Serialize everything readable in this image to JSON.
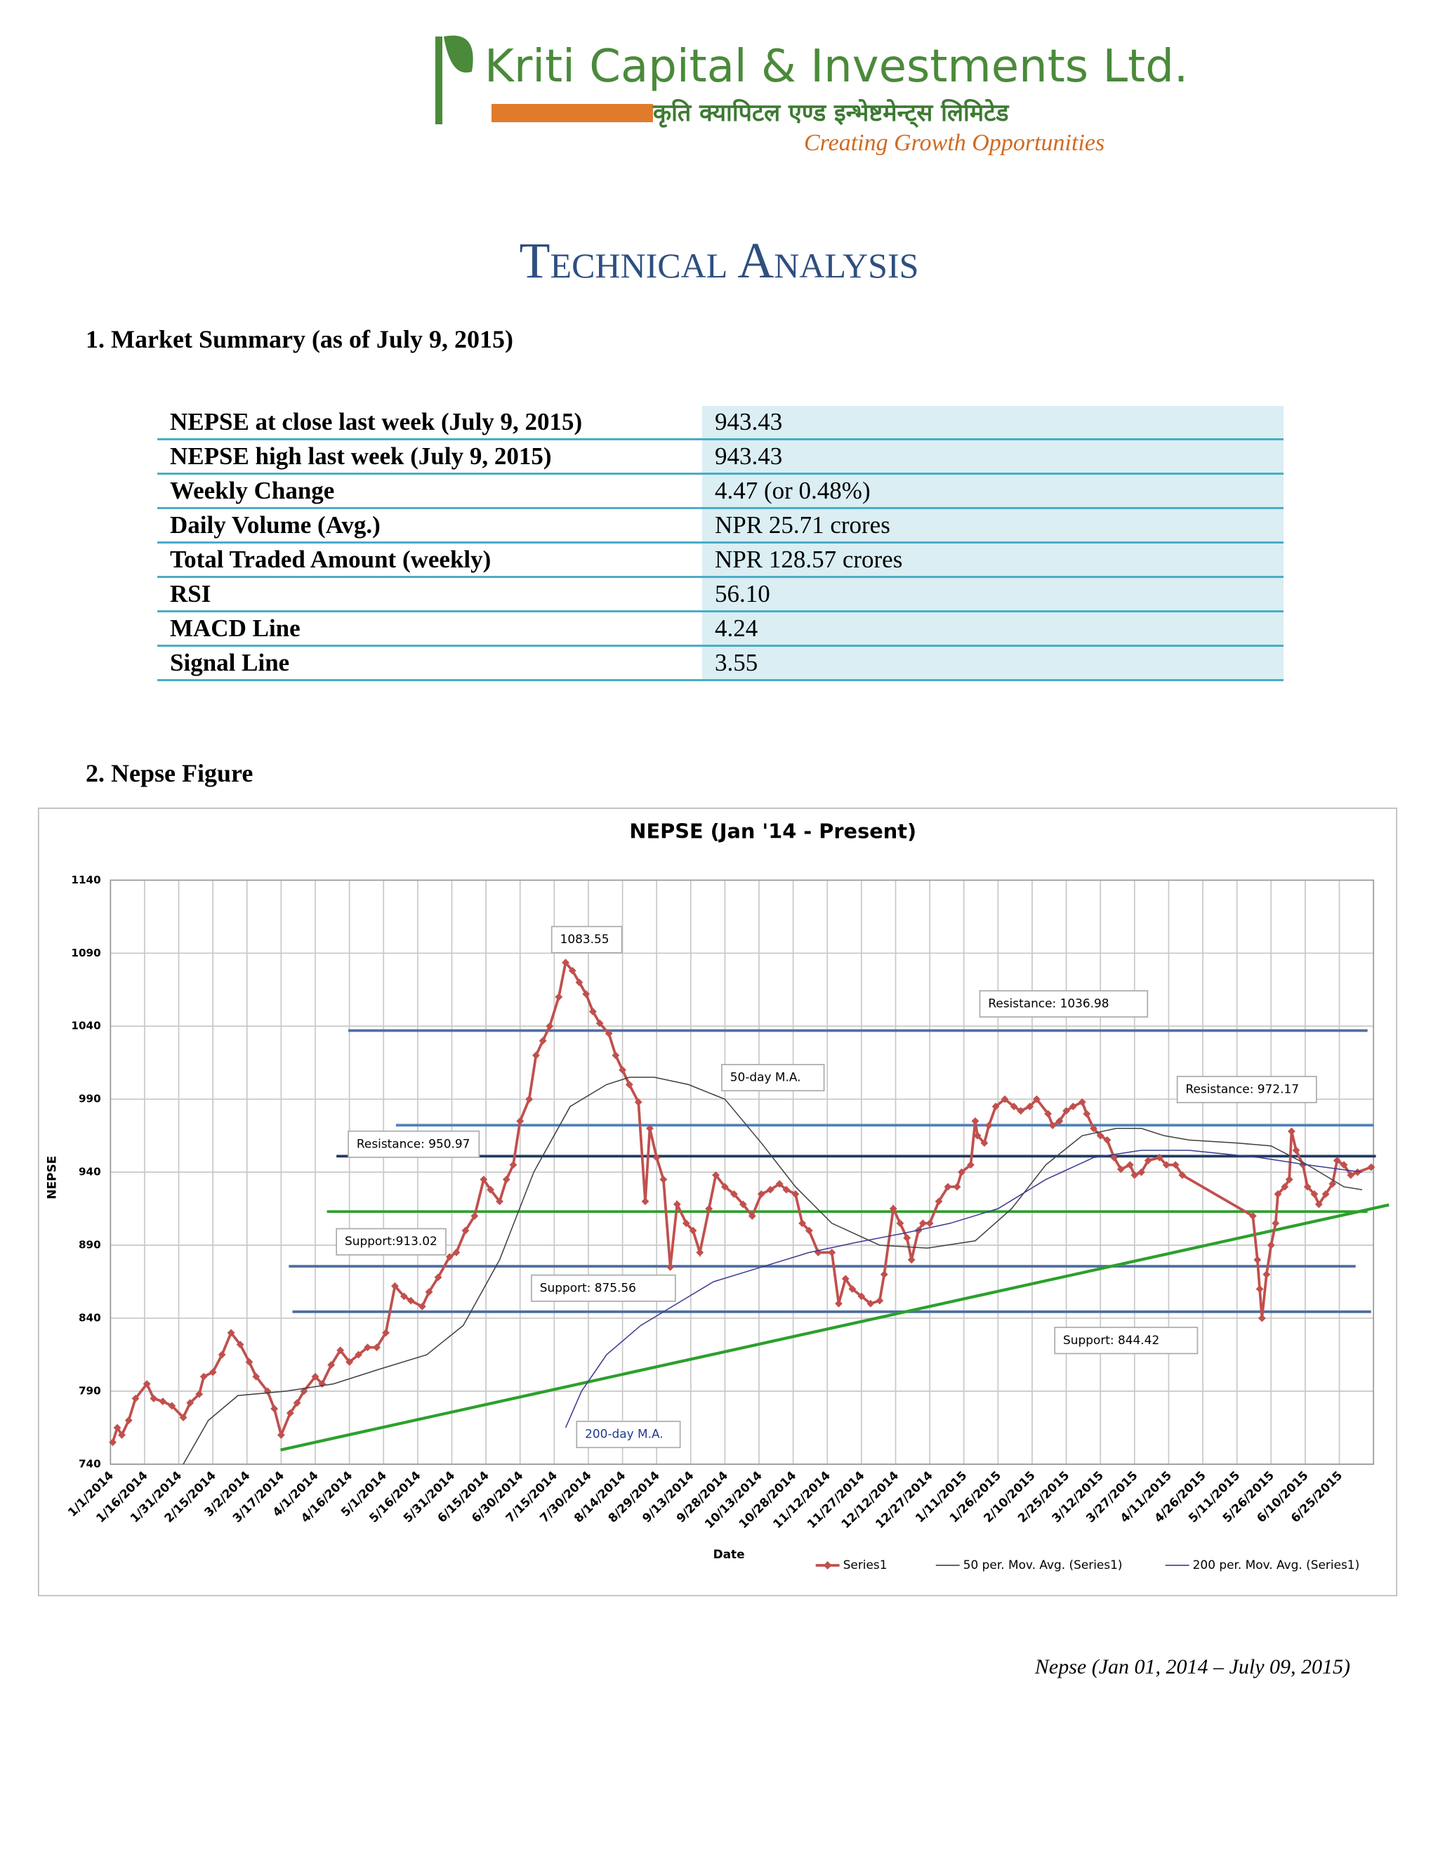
{
  "header": {
    "company": "Kriti Capital & Investments Ltd.",
    "company_local": "कृति क्यापिटल एण्ड इन्भेष्टमेन्ट्स लिमिटेड",
    "tagline": "Creating Growth Opportunities"
  },
  "title": "Technical Analysis",
  "sections": [
    "1.   Market Summary (as of July 9, 2015)",
    "2.   Nepse Figure"
  ],
  "table": {
    "rows": [
      [
        "NEPSE at close last week (July 9, 2015)",
        "943.43"
      ],
      [
        "NEPSE high last week (July 9, 2015)",
        "943.43"
      ],
      [
        "Weekly Change",
        "4.47 (or 0.48%)"
      ],
      [
        "Daily Volume (Avg.)",
        "NPR 25.71 crores"
      ],
      [
        "Total Traded Amount (weekly)",
        "NPR 128.57 crores"
      ],
      [
        "RSI",
        "56.10"
      ],
      [
        "MACD Line",
        "4.24"
      ],
      [
        "Signal Line",
        "3.55"
      ]
    ]
  },
  "chart_data": {
    "type": "line",
    "title": "NEPSE (Jan '14 - Present)",
    "x_label": "Date",
    "y_label": "NEPSE",
    "xlim": [
      "1/1/2014",
      "7/10/2015"
    ],
    "xticks": [
      "1/1/2014",
      "1/16/2014",
      "1/31/2014",
      "2/15/2014",
      "3/2/2014",
      "3/17/2014",
      "4/1/2014",
      "4/16/2014",
      "5/1/2014",
      "5/16/2014",
      "5/31/2014",
      "6/15/2014",
      "6/30/2014",
      "7/15/2014",
      "7/30/2014",
      "8/14/2014",
      "8/29/2014",
      "9/13/2014",
      "9/28/2014",
      "10/13/2014",
      "10/28/2014",
      "11/12/2014",
      "11/27/2014",
      "12/12/2014",
      "12/27/2014",
      "1/11/2015",
      "1/26/2015",
      "2/10/2015",
      "2/25/2015",
      "3/12/2015",
      "3/27/2015",
      "4/11/2015",
      "4/26/2015",
      "5/11/2015",
      "5/26/2015",
      "6/10/2015",
      "6/25/2015"
    ],
    "ylim": [
      740,
      1140
    ],
    "yticks": [
      740,
      790,
      840,
      890,
      940,
      990,
      1040,
      1090,
      1140
    ],
    "grid": true,
    "legend": "bottom",
    "series": [
      {
        "name": "Series1",
        "color": "#c0504d",
        "marker": "diamond",
        "x": [
          "1/2/2014",
          "1/4/2014",
          "1/6/2014",
          "1/9/2014",
          "1/12/2014",
          "1/17/2014",
          "1/20/2014",
          "1/24/2014",
          "1/28/2014",
          "2/2/2014",
          "2/5/2014",
          "2/9/2014",
          "2/11/2014",
          "2/15/2014",
          "2/19/2014",
          "2/23/2014",
          "2/27/2014",
          "3/3/2014",
          "3/6/2014",
          "3/11/2014",
          "3/14/2014",
          "3/17/2014",
          "3/21/2014",
          "3/24/2014",
          "3/27/2014",
          "4/1/2014",
          "4/4/2014",
          "4/8/2014",
          "4/12/2014",
          "4/16/2014",
          "4/20/2014",
          "4/24/2014",
          "4/28/2014",
          "5/2/2014",
          "5/6/2014",
          "5/10/2014",
          "5/13/2014",
          "5/18/2014",
          "5/21/2014",
          "5/25/2014",
          "5/30/2014",
          "6/2/2014",
          "6/6/2014",
          "6/10/2014",
          "6/14/2014",
          "6/17/2014",
          "6/21/2014",
          "6/24/2014",
          "6/27/2014",
          "6/30/2014",
          "7/4/2014",
          "7/7/2014",
          "7/10/2014",
          "7/13/2014",
          "7/17/2014",
          "7/20/2014",
          "7/23/2014",
          "7/26/2014",
          "7/29/2014",
          "8/1/2014",
          "8/4/2014",
          "8/8/2014",
          "8/11/2014",
          "8/14/2014",
          "8/17/2014",
          "8/21/2014",
          "8/24/2014",
          "8/26/2014",
          "8/29/2014",
          "9/1/2014",
          "9/4/2014",
          "9/7/2014",
          "9/11/2014",
          "9/14/2014",
          "9/17/2014",
          "9/21/2014",
          "9/24/2014",
          "9/28/2014",
          "10/2/2014",
          "10/6/2014",
          "10/10/2014",
          "10/14/2014",
          "10/18/2014",
          "10/22/2014",
          "10/25/2014",
          "10/29/2014",
          "11/1/2014",
          "11/4/2014",
          "11/8/2014",
          "11/14/2014",
          "11/17/2014",
          "11/20/2014",
          "11/23/2014",
          "11/27/2014",
          "12/1/2014",
          "12/5/2014",
          "12/7/2014",
          "12/11/2014",
          "12/14/2014",
          "12/17/2014",
          "12/19/2014",
          "12/22/2014",
          "12/24/2014",
          "12/27/2014",
          "12/31/2014",
          "1/4/2015",
          "1/8/2015",
          "1/10/2015",
          "1/14/2015",
          "1/16/2015",
          "1/17/2015",
          "1/20/2015",
          "1/22/2015",
          "1/25/2015",
          "1/29/2015",
          "2/2/2015",
          "2/5/2015",
          "2/9/2015",
          "2/12/2015",
          "2/17/2015",
          "2/19/2015",
          "2/22/2015",
          "2/25/2015",
          "2/28/2015",
          "3/4/2015",
          "3/6/2015",
          "3/9/2015",
          "3/12/2015",
          "3/15/2015",
          "3/18/2015",
          "3/21/2015",
          "3/25/2015",
          "3/27/2015",
          "3/30/2015",
          "4/2/2015",
          "4/7/2015",
          "4/10/2015",
          "4/14/2015",
          "4/17/2015",
          "5/18/2015",
          "5/20/2015",
          "5/21/2015",
          "5/22/2015",
          "5/24/2015",
          "5/26/2015",
          "5/28/2015",
          "5/29/2015",
          "6/1/2015",
          "6/3/2015",
          "6/4/2015",
          "6/6/2015",
          "6/9/2015",
          "6/11/2015",
          "6/14/2015",
          "6/16/2015",
          "6/19/2015",
          "6/22/2015",
          "6/24/2015",
          "6/27/2015",
          "6/30/2015",
          "7/3/2015",
          "7/9/2015"
        ],
        "values": [
          755,
          765,
          760,
          770,
          785,
          795,
          785,
          783,
          780,
          772,
          782,
          788,
          800,
          803,
          815,
          830,
          822,
          810,
          800,
          790,
          778,
          760,
          775,
          782,
          790,
          800,
          795,
          808,
          818,
          810,
          815,
          820,
          820,
          830,
          862,
          855,
          852,
          848,
          858,
          868,
          882,
          885,
          900,
          910,
          935,
          928,
          920,
          935,
          945,
          975,
          990,
          1020,
          1030,
          1040,
          1060,
          1083.55,
          1078,
          1070,
          1062,
          1050,
          1042,
          1035,
          1020,
          1010,
          1000,
          988,
          920,
          970,
          950,
          935,
          875,
          918,
          905,
          900,
          885,
          915,
          938,
          930,
          925,
          918,
          910,
          925,
          928,
          932,
          928,
          925,
          905,
          900,
          885,
          885,
          850,
          867,
          860,
          855,
          850,
          852,
          870,
          915,
          905,
          895,
          880,
          900,
          905,
          905,
          920,
          930,
          930,
          940,
          945,
          975,
          965,
          960,
          972,
          985,
          990,
          985,
          982,
          985,
          990,
          980,
          972,
          975,
          982,
          985,
          988,
          980,
          970,
          965,
          962,
          950,
          942,
          945,
          938,
          940,
          948,
          950,
          945,
          945,
          938,
          910,
          880,
          860,
          840,
          870,
          890,
          905,
          925,
          930,
          935,
          968,
          955,
          945,
          930,
          925,
          918,
          925,
          932,
          948,
          945,
          938,
          940,
          943.43
        ]
      },
      {
        "name": "50 per. Mov. Avg. (Series1)",
        "color": "#404040",
        "marker": "none",
        "x": [
          "2/2/2014",
          "2/13/2014",
          "2/26/2014",
          "3/19/2014",
          "4/9/2014",
          "4/29/2014",
          "5/20/2014",
          "6/5/2014",
          "6/21/2014",
          "7/6/2014",
          "7/22/2014",
          "8/7/2014",
          "8/17/2014",
          "8/28/2014",
          "9/12/2014",
          "9/28/2014",
          "10/14/2014",
          "10/29/2014",
          "11/14/2014",
          "12/5/2014",
          "12/26/2014",
          "1/16/2015",
          "2/1/2015",
          "2/16/2015",
          "3/4/2015",
          "3/19/2015",
          "3/30/2015",
          "4/9/2015",
          "4/20/2015",
          "5/11/2015",
          "5/26/2015",
          "6/11/2015",
          "6/27/2015",
          "7/5/2015"
        ],
        "values": [
          740,
          770,
          787,
          790,
          795,
          805,
          815,
          835,
          880,
          940,
          985,
          1000,
          1005,
          1005,
          1000,
          990,
          960,
          930,
          905,
          890,
          888,
          893,
          915,
          945,
          965,
          970,
          970,
          965,
          962,
          960,
          958,
          945,
          930,
          928
        ]
      },
      {
        "name": "200 per. Mov. Avg. (Series1)",
        "color": "#3b3b8f",
        "marker": "none",
        "x": [
          "7/20/2014",
          "7/27/2014",
          "8/7/2014",
          "8/22/2014",
          "9/7/2014",
          "9/23/2014",
          "10/14/2014",
          "11/4/2014",
          "11/25/2014",
          "12/15/2014",
          "1/5/2015",
          "1/26/2015",
          "2/16/2015",
          "3/9/2015",
          "3/30/2015",
          "4/20/2015",
          "5/21/2015",
          "6/11/2015",
          "7/5/2015"
        ],
        "values": [
          765,
          790,
          815,
          835,
          850,
          865,
          875,
          885,
          892,
          898,
          905,
          915,
          935,
          950,
          955,
          955,
          950,
          945,
          940
        ]
      }
    ],
    "levels": [
      {
        "label": "Resistance: 1036.98",
        "value": 1036.98,
        "color": "#4f6fa0"
      },
      {
        "label": "Resistance: 972.17",
        "value": 972.17,
        "color": "#4f81bd"
      },
      {
        "label": "Resistance: 950.97",
        "value": 950.97,
        "color": "#1f3a60"
      },
      {
        "label": "Support:913.02",
        "value": 913.02,
        "color": "#2ca02c"
      },
      {
        "label": "Support: 875.56",
        "value": 875.56,
        "color": "#4f6fa0"
      },
      {
        "label": "Support: 844.42",
        "value": 844.42,
        "color": "#4f6fa0"
      }
    ],
    "annotations": [
      "1083.55",
      "50-day M.A.",
      "200-day M.A."
    ]
  },
  "caption": "Nepse (Jan 01, 2014 – July 09, 2015)"
}
